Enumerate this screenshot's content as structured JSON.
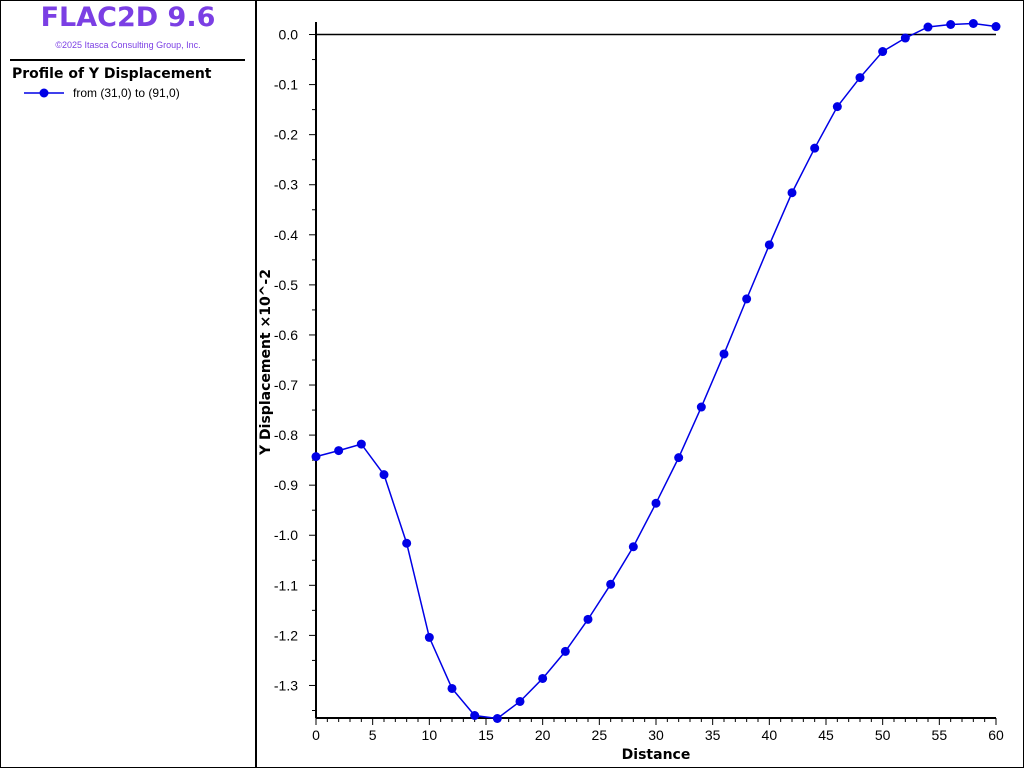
{
  "app": {
    "title": "FLAC2D 9.6",
    "copyright": "©2025 Itasca Consulting Group, Inc."
  },
  "legend": {
    "plot_title": "Profile of Y Displacement",
    "entry_label": "from (31,0) to (91,0)"
  },
  "colors": {
    "series": "#0000e6",
    "brand": "#7b3fe4"
  },
  "chart_data": {
    "type": "line",
    "xlabel": "Distance",
    "ylabel": "Y Displacement  ×10^-2",
    "xlim": [
      0,
      60
    ],
    "ylim": [
      -1.365,
      0.025
    ],
    "x_ticks": [
      0,
      5,
      10,
      15,
      20,
      25,
      30,
      35,
      40,
      45,
      50,
      55,
      60
    ],
    "y_ticks": [
      0.0,
      -0.1,
      -0.2,
      -0.3,
      -0.4,
      -0.5,
      -0.6,
      -0.7,
      -0.8,
      -0.9,
      -1.0,
      -1.1,
      -1.2,
      -1.3
    ],
    "x_tick_labels": [
      "0",
      "5",
      "10",
      "15",
      "20",
      "25",
      "30",
      "35",
      "40",
      "45",
      "50",
      "55",
      "60"
    ],
    "y_tick_labels": [
      "0.0",
      "-0.1",
      "-0.2",
      "-0.3",
      "-0.4",
      "-0.5",
      "-0.6",
      "-0.7",
      "-0.8",
      "-0.9",
      "-1.0",
      "-1.1",
      "-1.2",
      "-1.3"
    ],
    "zero_line": true,
    "grid": false,
    "series": [
      {
        "name": "from (31,0) to (91,0)",
        "color": "#0000e6",
        "x": [
          0,
          2,
          4,
          6,
          8,
          10,
          12,
          14,
          16,
          18,
          20,
          22,
          24,
          26,
          28,
          30,
          32,
          34,
          36,
          38,
          40,
          42,
          44,
          46,
          48,
          50,
          52,
          54,
          56,
          58,
          60
        ],
        "y": [
          -0.843,
          -0.831,
          -0.818,
          -0.879,
          -1.016,
          -1.204,
          -1.306,
          -1.36,
          -1.366,
          -1.332,
          -1.286,
          -1.232,
          -1.168,
          -1.098,
          -1.023,
          -0.936,
          -0.845,
          -0.744,
          -0.638,
          -0.528,
          -0.42,
          -0.316,
          -0.227,
          -0.144,
          -0.086,
          -0.034,
          -0.007,
          0.015,
          0.02,
          0.022,
          0.016
        ]
      }
    ]
  }
}
